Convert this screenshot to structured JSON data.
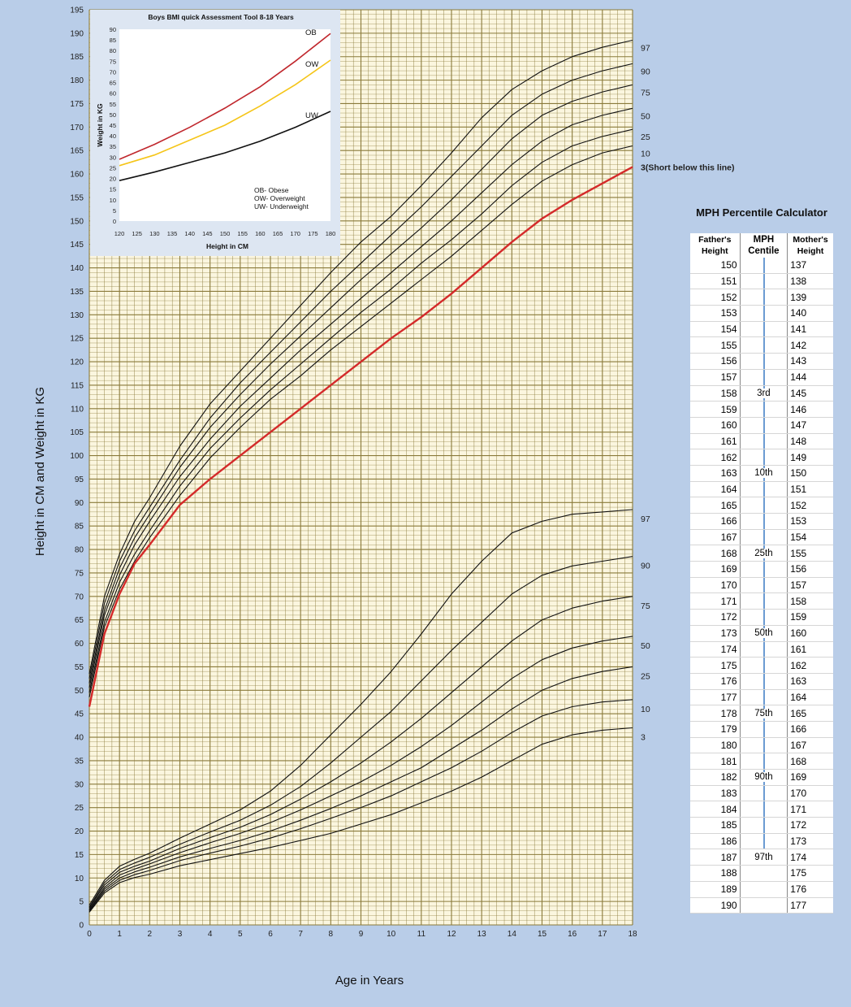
{
  "chart_data": [
    {
      "type": "line",
      "title": "",
      "xlabel": "Age in Years",
      "ylabel": "Height in CM and Weight in KG",
      "xlim": [
        0,
        18
      ],
      "ylim": [
        0,
        195
      ],
      "x_ticks": [
        0,
        1,
        2,
        3,
        4,
        5,
        6,
        7,
        8,
        9,
        10,
        11,
        12,
        13,
        14,
        15,
        16,
        17,
        18
      ],
      "y_ticks": [
        0,
        5,
        10,
        15,
        20,
        25,
        30,
        35,
        40,
        45,
        50,
        55,
        60,
        65,
        70,
        75,
        80,
        85,
        90,
        95,
        100,
        105,
        110,
        115,
        120,
        125,
        130,
        135,
        140,
        145,
        150,
        155,
        160,
        165,
        170,
        175,
        180,
        185,
        190,
        195
      ],
      "grid": true,
      "grid_color": "#8a7a3a",
      "background": "#fbf6df",
      "height_series": [
        {
          "name": "97",
          "x": [
            0,
            0.5,
            1,
            1.5,
            2,
            3,
            4,
            5,
            6,
            7,
            8,
            9,
            10,
            11,
            12,
            13,
            14,
            15,
            16,
            17,
            18
          ],
          "values": [
            53.5,
            70,
            79,
            86,
            91,
            102,
            111,
            118,
            125,
            132,
            139,
            145.5,
            151,
            157.5,
            164.5,
            172,
            178,
            182,
            185,
            187,
            188.5
          ]
        },
        {
          "name": "90",
          "x": [
            0,
            0.5,
            1,
            1.5,
            2,
            3,
            4,
            5,
            6,
            7,
            8,
            9,
            10,
            11,
            12,
            13,
            14,
            15,
            16,
            17,
            18
          ],
          "values": [
            52.5,
            68.5,
            77.5,
            84,
            89,
            99,
            108,
            115.5,
            122,
            128.5,
            135,
            141,
            147,
            153,
            159.5,
            166,
            172.5,
            177,
            180,
            182,
            183.5
          ]
        },
        {
          "name": "75",
          "x": [
            0,
            0.5,
            1,
            1.5,
            2,
            3,
            4,
            5,
            6,
            7,
            8,
            9,
            10,
            11,
            12,
            13,
            14,
            15,
            16,
            17,
            18
          ],
          "values": [
            51.5,
            67,
            76,
            82.5,
            87.5,
            97.5,
            106,
            113,
            119.5,
            125.5,
            131.5,
            137.5,
            143,
            148.5,
            154.5,
            161,
            167.5,
            172.5,
            175.5,
            177.5,
            179
          ]
        },
        {
          "name": "50",
          "x": [
            0,
            0.5,
            1,
            1.5,
            2,
            3,
            4,
            5,
            6,
            7,
            8,
            9,
            10,
            11,
            12,
            13,
            14,
            15,
            16,
            17,
            18
          ],
          "values": [
            50.5,
            66,
            74.5,
            81,
            86,
            95.5,
            103.5,
            110.5,
            116.5,
            122.5,
            128,
            133.5,
            139,
            144.5,
            150,
            156,
            162,
            167,
            170.5,
            172.5,
            174
          ]
        },
        {
          "name": "25",
          "x": [
            0,
            0.5,
            1,
            1.5,
            2,
            3,
            4,
            5,
            6,
            7,
            8,
            9,
            10,
            11,
            12,
            13,
            14,
            15,
            16,
            17,
            18
          ],
          "values": [
            49.5,
            64.5,
            73,
            79,
            84,
            93.5,
            101.5,
            108,
            114,
            119.5,
            125,
            130.5,
            135.5,
            141,
            146,
            151.5,
            157.5,
            162.5,
            166,
            168,
            169.5
          ]
        },
        {
          "name": "10",
          "x": [
            0,
            0.5,
            1,
            1.5,
            2,
            3,
            4,
            5,
            6,
            7,
            8,
            9,
            10,
            11,
            12,
            13,
            14,
            15,
            16,
            17,
            18
          ],
          "values": [
            48.5,
            63.5,
            71.5,
            77.5,
            82.5,
            91.5,
            99.5,
            106,
            112,
            117,
            122.5,
            127.5,
            132.5,
            137.5,
            142.5,
            148,
            153.5,
            158.5,
            162,
            164.5,
            166
          ]
        },
        {
          "name": "3",
          "x": [
            0,
            0.5,
            1,
            1.5,
            2,
            3,
            4,
            5,
            6,
            7,
            8,
            9,
            10,
            11,
            12,
            13,
            14,
            15,
            16,
            17,
            18
          ],
          "values": [
            46.5,
            62,
            70.5,
            77,
            81,
            89.5,
            95,
            100,
            105,
            110,
            115,
            120,
            125,
            129.5,
            134.5,
            140,
            145.5,
            150.5,
            154.5,
            158,
            161.5
          ]
        }
      ],
      "weight_series": [
        {
          "name": "97",
          "x": [
            0,
            0.5,
            1,
            1.5,
            2,
            3,
            4,
            5,
            6,
            7,
            8,
            9,
            10,
            11,
            12,
            13,
            14,
            15,
            16,
            17,
            18
          ],
          "values": [
            4.2,
            9.5,
            12.5,
            14,
            15.3,
            18.5,
            21.5,
            24.5,
            28.5,
            34,
            40.5,
            47,
            54,
            62,
            70.5,
            77.5,
            83.5,
            86,
            87.5,
            88,
            88.5
          ]
        },
        {
          "name": "90",
          "x": [
            0,
            0.5,
            1,
            1.5,
            2,
            3,
            4,
            5,
            6,
            7,
            8,
            9,
            10,
            11,
            12,
            13,
            14,
            15,
            16,
            17,
            18
          ],
          "values": [
            3.8,
            9,
            11.8,
            13.2,
            14.4,
            17.2,
            19.8,
            22.3,
            25.5,
            29.5,
            34.5,
            40,
            45.5,
            52,
            58.5,
            64.5,
            70.5,
            74.5,
            76.5,
            77.5,
            78.5
          ]
        },
        {
          "name": "75",
          "x": [
            0,
            0.5,
            1,
            1.5,
            2,
            3,
            4,
            5,
            6,
            7,
            8,
            9,
            10,
            11,
            12,
            13,
            14,
            15,
            16,
            17,
            18
          ],
          "values": [
            3.6,
            8.5,
            11.2,
            12.5,
            13.6,
            16.3,
            18.6,
            20.8,
            23.5,
            26.8,
            30.5,
            34.5,
            39,
            44,
            49.5,
            55,
            60.5,
            65,
            67.5,
            69,
            70
          ]
        },
        {
          "name": "50",
          "x": [
            0,
            0.5,
            1,
            1.5,
            2,
            3,
            4,
            5,
            6,
            7,
            8,
            9,
            10,
            11,
            12,
            13,
            14,
            15,
            16,
            17,
            18
          ],
          "values": [
            3.3,
            8,
            10.6,
            11.9,
            13,
            15.4,
            17.5,
            19.5,
            21.8,
            24.5,
            27.5,
            30.5,
            34,
            38,
            42.5,
            47.5,
            52.5,
            56.5,
            59,
            60.5,
            61.5
          ]
        },
        {
          "name": "25",
          "x": [
            0,
            0.5,
            1,
            1.5,
            2,
            3,
            4,
            5,
            6,
            7,
            8,
            9,
            10,
            11,
            12,
            13,
            14,
            15,
            16,
            17,
            18
          ],
          "values": [
            3.1,
            7.6,
            10,
            11.3,
            12.3,
            14.5,
            16.3,
            18,
            20,
            22.3,
            24.8,
            27.5,
            30.5,
            33.5,
            37.5,
            41.5,
            46,
            50,
            52.5,
            54,
            55
          ]
        },
        {
          "name": "10",
          "x": [
            0,
            0.5,
            1,
            1.5,
            2,
            3,
            4,
            5,
            6,
            7,
            8,
            9,
            10,
            11,
            12,
            13,
            14,
            15,
            16,
            17,
            18
          ],
          "values": [
            2.9,
            7.2,
            9.5,
            10.7,
            11.6,
            13.7,
            15.3,
            16.8,
            18.5,
            20.5,
            22.7,
            25,
            27.5,
            30.5,
            33.5,
            37,
            41,
            44.5,
            46.5,
            47.5,
            48
          ]
        },
        {
          "name": "3",
          "x": [
            0,
            0.5,
            1,
            1.5,
            2,
            3,
            4,
            5,
            6,
            7,
            8,
            9,
            10,
            11,
            12,
            13,
            14,
            15,
            16,
            17,
            18
          ],
          "values": [
            2.7,
            6.8,
            9,
            10.1,
            10.8,
            12.6,
            13.9,
            15.2,
            16.5,
            18,
            19.5,
            21.5,
            23.5,
            26,
            28.5,
            31.5,
            35,
            38.5,
            40.5,
            41.5,
            42
          ]
        }
      ],
      "highlight_series": "3",
      "highlight_color": "#d42a2a",
      "highlight_label": "3(Short below this line)",
      "height_right_labels": [
        "97",
        "90",
        "75",
        "50",
        "25",
        "10"
      ],
      "weight_right_labels": [
        "97",
        "90",
        "75",
        "50",
        "25",
        "10",
        "3"
      ]
    },
    {
      "type": "line",
      "title": "Boys BMI quick Assessment Tool 8-18 Years",
      "xlabel": "Height in CM",
      "ylabel": "Weight in KG",
      "xlim": [
        120,
        180
      ],
      "ylim": [
        0,
        90
      ],
      "x_ticks": [
        120,
        125,
        130,
        135,
        140,
        145,
        150,
        155,
        160,
        165,
        170,
        175,
        180
      ],
      "y_ticks": [
        0,
        5,
        10,
        15,
        20,
        25,
        30,
        35,
        40,
        45,
        50,
        55,
        60,
        65,
        70,
        75,
        80,
        85,
        90
      ],
      "grid": false,
      "series": [
        {
          "name": "OB",
          "color": "#c0272d",
          "x": [
            120,
            130,
            140,
            150,
            160,
            170,
            180
          ],
          "values": [
            29,
            36,
            44,
            53,
            63,
            75,
            88
          ]
        },
        {
          "name": "OW",
          "color": "#f5c518",
          "x": [
            120,
            130,
            140,
            150,
            160,
            170,
            180
          ],
          "values": [
            26,
            31,
            38,
            45,
            54,
            64,
            75.5
          ]
        },
        {
          "name": "UW",
          "color": "#111111",
          "x": [
            120,
            130,
            140,
            150,
            160,
            170,
            180
          ],
          "values": [
            19,
            23,
            27.5,
            32,
            37.5,
            44,
            51.5
          ]
        }
      ],
      "legend": [
        "OB- Obese",
        "OW- Overweight",
        "UW- Underweight"
      ],
      "legend_position": "bottom-right"
    }
  ],
  "mph_calculator": {
    "title": "MPH Percentile Calculator",
    "headers": {
      "father": "Father's Height",
      "centile": "MPH Centile",
      "mother": "Mother's Height"
    },
    "rows": [
      {
        "father": "150",
        "centile": "",
        "mother": "137"
      },
      {
        "father": "151",
        "centile": "",
        "mother": "138"
      },
      {
        "father": "152",
        "centile": "",
        "mother": "139"
      },
      {
        "father": "153",
        "centile": "",
        "mother": "140"
      },
      {
        "father": "154",
        "centile": "",
        "mother": "141"
      },
      {
        "father": "155",
        "centile": "",
        "mother": "142"
      },
      {
        "father": "156",
        "centile": "",
        "mother": "143"
      },
      {
        "father": "157",
        "centile": "",
        "mother": "144"
      },
      {
        "father": "158",
        "centile": "3rd",
        "mother": "145"
      },
      {
        "father": "159",
        "centile": "",
        "mother": "146"
      },
      {
        "father": "160",
        "centile": "",
        "mother": "147"
      },
      {
        "father": "161",
        "centile": "",
        "mother": "148"
      },
      {
        "father": "162",
        "centile": "",
        "mother": "149"
      },
      {
        "father": "163",
        "centile": "10th",
        "mother": "150"
      },
      {
        "father": "164",
        "centile": "",
        "mother": "151"
      },
      {
        "father": "165",
        "centile": "",
        "mother": "152"
      },
      {
        "father": "166",
        "centile": "",
        "mother": "153"
      },
      {
        "father": "167",
        "centile": "",
        "mother": "154"
      },
      {
        "father": "168",
        "centile": "25th",
        "mother": "155"
      },
      {
        "father": "169",
        "centile": "",
        "mother": "156"
      },
      {
        "father": "170",
        "centile": "",
        "mother": "157"
      },
      {
        "father": "171",
        "centile": "",
        "mother": "158"
      },
      {
        "father": "172",
        "centile": "",
        "mother": "159"
      },
      {
        "father": "173",
        "centile": "50th",
        "mother": "160"
      },
      {
        "father": "174",
        "centile": "",
        "mother": "161"
      },
      {
        "father": "175",
        "centile": "",
        "mother": "162"
      },
      {
        "father": "176",
        "centile": "",
        "mother": "163"
      },
      {
        "father": "177",
        "centile": "",
        "mother": "164"
      },
      {
        "father": "178",
        "centile": "75th",
        "mother": "165"
      },
      {
        "father": "179",
        "centile": "",
        "mother": "166"
      },
      {
        "father": "180",
        "centile": "",
        "mother": "167"
      },
      {
        "father": "181",
        "centile": "",
        "mother": "168"
      },
      {
        "father": "182",
        "centile": "90th",
        "mother": "169"
      },
      {
        "father": "183",
        "centile": "",
        "mother": "170"
      },
      {
        "father": "184",
        "centile": "",
        "mother": "171"
      },
      {
        "father": "185",
        "centile": "",
        "mother": "172"
      },
      {
        "father": "186",
        "centile": "",
        "mother": "173"
      },
      {
        "father": "187",
        "centile": "97th",
        "mother": "174"
      },
      {
        "father": "188",
        "centile": "",
        "mother": "175"
      },
      {
        "father": "189",
        "centile": "",
        "mother": "176"
      },
      {
        "father": "190",
        "centile": "",
        "mother": "177"
      }
    ]
  }
}
